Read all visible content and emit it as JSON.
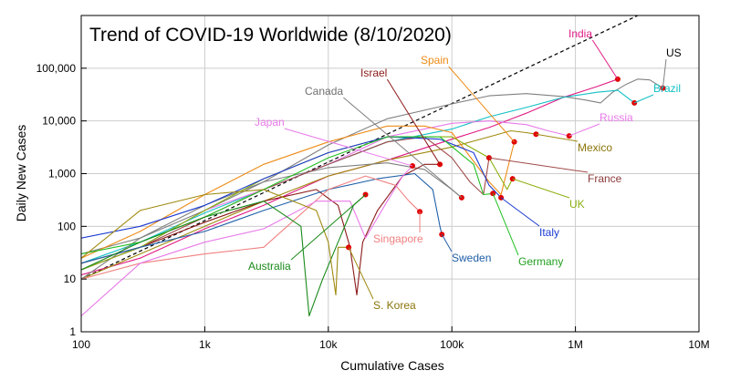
{
  "chart_data": {
    "type": "line",
    "title": "Trend of COVID-19 Worldwide (8/10/2020)",
    "xlabel": "Cumulative Cases",
    "ylabel": "Daily New Cases",
    "xscale": "log",
    "yscale": "log",
    "xlim": [
      100,
      10000000
    ],
    "ylim": [
      1,
      1000000
    ],
    "x_ticks": [
      {
        "value": 100,
        "label": "100"
      },
      {
        "value": 1000,
        "label": "1k"
      },
      {
        "value": 10000,
        "label": "10k"
      },
      {
        "value": 100000,
        "label": "100k"
      },
      {
        "value": 1000000,
        "label": "1M"
      },
      {
        "value": 10000000,
        "label": "10M"
      }
    ],
    "y_ticks": [
      {
        "value": 1,
        "label": "1"
      },
      {
        "value": 10,
        "label": "10"
      },
      {
        "value": 100,
        "label": "100"
      },
      {
        "value": 1000,
        "label": "1,000"
      },
      {
        "value": 10000,
        "label": "10,000"
      },
      {
        "value": 100000,
        "label": "100,000"
      }
    ],
    "grid": true,
    "reference_line": {
      "style": "dashed",
      "color": "#000000",
      "points": [
        [
          100,
          10
        ],
        [
          3200000,
          1000000
        ]
      ]
    },
    "series": [
      {
        "name": "US",
        "color": "#808080",
        "endpoint": [
          5100000,
          42000
        ],
        "points": [
          [
            100,
            30
          ],
          [
            300,
            60
          ],
          [
            1000,
            200
          ],
          [
            3000,
            700
          ],
          [
            10000,
            3500
          ],
          [
            30000,
            11000
          ],
          [
            100000,
            21000
          ],
          [
            200000,
            30000
          ],
          [
            400000,
            33000
          ],
          [
            800000,
            29000
          ],
          [
            1200000,
            25000
          ],
          [
            1600000,
            22000
          ],
          [
            2000000,
            35000
          ],
          [
            2600000,
            50000
          ],
          [
            3200000,
            62000
          ],
          [
            4000000,
            60000
          ],
          [
            5100000,
            42000
          ]
        ]
      },
      {
        "name": "India",
        "color": "#e01b84",
        "endpoint": [
          2200000,
          62000
        ],
        "points": [
          [
            100,
            12
          ],
          [
            300,
            25
          ],
          [
            1000,
            90
          ],
          [
            3000,
            250
          ],
          [
            10000,
            900
          ],
          [
            30000,
            1800
          ],
          [
            100000,
            4500
          ],
          [
            200000,
            7500
          ],
          [
            400000,
            14000
          ],
          [
            800000,
            28000
          ],
          [
            1500000,
            45000
          ],
          [
            2200000,
            62000
          ]
        ]
      },
      {
        "name": "Brazil",
        "color": "#12c0c6",
        "endpoint": [
          3000000,
          22000
        ],
        "points": [
          [
            100,
            20
          ],
          [
            300,
            50
          ],
          [
            1000,
            180
          ],
          [
            3000,
            500
          ],
          [
            10000,
            1500
          ],
          [
            30000,
            4000
          ],
          [
            100000,
            7000
          ],
          [
            200000,
            12000
          ],
          [
            400000,
            18000
          ],
          [
            800000,
            28000
          ],
          [
            1500000,
            35000
          ],
          [
            2200000,
            38000
          ],
          [
            3000000,
            22000
          ]
        ]
      },
      {
        "name": "Russia",
        "color": "#e87ae8",
        "endpoint": [
          890000,
          5200
        ],
        "points": [
          [
            100,
            15
          ],
          [
            300,
            40
          ],
          [
            1000,
            200
          ],
          [
            3000,
            500
          ],
          [
            10000,
            1500
          ],
          [
            30000,
            5000
          ],
          [
            100000,
            9000
          ],
          [
            200000,
            10000
          ],
          [
            400000,
            8500
          ],
          [
            600000,
            6500
          ],
          [
            890000,
            5200
          ]
        ]
      },
      {
        "name": "Mexico",
        "color": "#a08a10",
        "endpoint": [
          480000,
          5600
        ],
        "points": [
          [
            100,
            10
          ],
          [
            300,
            30
          ],
          [
            1000,
            100
          ],
          [
            3000,
            300
          ],
          [
            10000,
            900
          ],
          [
            30000,
            1800
          ],
          [
            100000,
            3200
          ],
          [
            200000,
            5000
          ],
          [
            300000,
            6500
          ],
          [
            400000,
            6000
          ],
          [
            480000,
            5600
          ]
        ]
      },
      {
        "name": "Canada",
        "color": "#808080",
        "endpoint": [
          120000,
          350
        ],
        "points": [
          [
            100,
            10
          ],
          [
            300,
            60
          ],
          [
            1000,
            250
          ],
          [
            3000,
            700
          ],
          [
            10000,
            1300
          ],
          [
            30000,
            1600
          ],
          [
            60000,
            1200
          ],
          [
            100000,
            500
          ],
          [
            120000,
            350
          ]
        ]
      },
      {
        "name": "Spain",
        "color": "#ee8c18",
        "endpoint": [
          320000,
          4000
        ],
        "points": [
          [
            100,
            25
          ],
          [
            300,
            80
          ],
          [
            1000,
            400
          ],
          [
            3000,
            1500
          ],
          [
            10000,
            4000
          ],
          [
            30000,
            8000
          ],
          [
            60000,
            8000
          ],
          [
            100000,
            6000
          ],
          [
            200000,
            700
          ],
          [
            250000,
            400
          ],
          [
            320000,
            4000
          ]
        ]
      },
      {
        "name": "Israel",
        "color": "#8b1a1a",
        "endpoint": [
          80000,
          1500
        ],
        "points": [
          [
            100,
            20
          ],
          [
            300,
            40
          ],
          [
            1000,
            120
          ],
          [
            3000,
            300
          ],
          [
            8000,
            500
          ],
          [
            12000,
            250
          ],
          [
            15000,
            40
          ],
          [
            17000,
            5
          ],
          [
            19000,
            50
          ],
          [
            25000,
            200
          ],
          [
            40000,
            900
          ],
          [
            60000,
            1500
          ],
          [
            80000,
            1500
          ]
        ]
      },
      {
        "name": "France",
        "color": "#a04a4a",
        "endpoint": [
          200000,
          2000
        ],
        "points": [
          [
            100,
            15
          ],
          [
            300,
            40
          ],
          [
            1000,
            150
          ],
          [
            3000,
            500
          ],
          [
            10000,
            1500
          ],
          [
            30000,
            4000
          ],
          [
            60000,
            5000
          ],
          [
            100000,
            2000
          ],
          [
            140000,
            700
          ],
          [
            180000,
            400
          ],
          [
            200000,
            2000
          ]
        ]
      },
      {
        "name": "UK",
        "color": "#8cb010",
        "endpoint": [
          310000,
          800
        ],
        "points": [
          [
            100,
            15
          ],
          [
            300,
            40
          ],
          [
            1000,
            200
          ],
          [
            3000,
            800
          ],
          [
            10000,
            2500
          ],
          [
            30000,
            5000
          ],
          [
            100000,
            5000
          ],
          [
            200000,
            2000
          ],
          [
            280000,
            500
          ],
          [
            310000,
            800
          ]
        ]
      },
      {
        "name": "Italy",
        "color": "#1a3ad0",
        "endpoint": [
          250000,
          350
        ],
        "points": [
          [
            100,
            60
          ],
          [
            300,
            100
          ],
          [
            1000,
            250
          ],
          [
            3000,
            800
          ],
          [
            10000,
            2500
          ],
          [
            30000,
            5000
          ],
          [
            80000,
            4500
          ],
          [
            150000,
            2500
          ],
          [
            200000,
            600
          ],
          [
            250000,
            350
          ]
        ]
      },
      {
        "name": "Germany",
        "color": "#22c022",
        "endpoint": [
          215000,
          420
        ],
        "points": [
          [
            100,
            30
          ],
          [
            300,
            50
          ],
          [
            1000,
            150
          ],
          [
            3000,
            500
          ],
          [
            10000,
            2000
          ],
          [
            30000,
            5000
          ],
          [
            80000,
            5000
          ],
          [
            150000,
            1500
          ],
          [
            180000,
            400
          ],
          [
            215000,
            420
          ]
        ]
      },
      {
        "name": "Sweden",
        "color": "#2060a8",
        "endpoint": [
          83000,
          70
        ],
        "points": [
          [
            100,
            20
          ],
          [
            300,
            40
          ],
          [
            1000,
            80
          ],
          [
            3000,
            200
          ],
          [
            10000,
            500
          ],
          [
            25000,
            800
          ],
          [
            50000,
            1000
          ],
          [
            70000,
            500
          ],
          [
            80000,
            100
          ],
          [
            83000,
            70
          ]
        ]
      },
      {
        "name": "Singapore",
        "color": "#f08080",
        "endpoint": [
          55000,
          190
        ],
        "points": [
          [
            100,
            10
          ],
          [
            300,
            20
          ],
          [
            1000,
            30
          ],
          [
            3000,
            40
          ],
          [
            10000,
            500
          ],
          [
            20000,
            900
          ],
          [
            35000,
            600
          ],
          [
            45000,
            300
          ],
          [
            55000,
            190
          ]
        ]
      },
      {
        "name": "Japan",
        "color": "#e87ae8",
        "endpoint": [
          48000,
          1400
        ],
        "points": [
          [
            100,
            2
          ],
          [
            300,
            20
          ],
          [
            1000,
            50
          ],
          [
            3000,
            90
          ],
          [
            8000,
            300
          ],
          [
            15000,
            300
          ],
          [
            20000,
            60
          ],
          [
            30000,
            300
          ],
          [
            40000,
            900
          ],
          [
            48000,
            1400
          ]
        ]
      },
      {
        "name": "Australia",
        "color": "#1a8a1a",
        "endpoint": [
          20000,
          400
        ],
        "points": [
          [
            100,
            15
          ],
          [
            300,
            50
          ],
          [
            1000,
            150
          ],
          [
            3000,
            300
          ],
          [
            6000,
            100
          ],
          [
            7000,
            2
          ],
          [
            9000,
            10
          ],
          [
            12000,
            50
          ],
          [
            16000,
            250
          ],
          [
            20000,
            400
          ]
        ]
      },
      {
        "name": "S. Korea",
        "color": "#a08a10",
        "endpoint": [
          14600,
          40
        ],
        "points": [
          [
            100,
            25
          ],
          [
            300,
            200
          ],
          [
            1000,
            400
          ],
          [
            3000,
            500
          ],
          [
            8000,
            200
          ],
          [
            10000,
            50
          ],
          [
            11500,
            5
          ],
          [
            12000,
            40
          ],
          [
            14600,
            40
          ]
        ]
      }
    ]
  },
  "series_labels": [
    {
      "name": "US",
      "color": "#000000"
    },
    {
      "name": "India",
      "color": "#e01b84"
    },
    {
      "name": "Brazil",
      "color": "#12c0c6"
    },
    {
      "name": "Russia",
      "color": "#e87ae8"
    },
    {
      "name": "Mexico",
      "color": "#8a7408"
    },
    {
      "name": "Canada",
      "color": "#707070"
    },
    {
      "name": "Spain",
      "color": "#ee8c18"
    },
    {
      "name": "Israel",
      "color": "#8b1a1a"
    },
    {
      "name": "France",
      "color": "#8b3a3a"
    },
    {
      "name": "UK",
      "color": "#8cb010"
    },
    {
      "name": "Italy",
      "color": "#1a3ad0"
    },
    {
      "name": "Germany",
      "color": "#22a022"
    },
    {
      "name": "Sweden",
      "color": "#2060a8"
    },
    {
      "name": "Singapore",
      "color": "#f08080"
    },
    {
      "name": "Japan",
      "color": "#e87ae8"
    },
    {
      "name": "Australia",
      "color": "#1a8a1a"
    },
    {
      "name": "S. Korea",
      "color": "#8a7408"
    }
  ],
  "colors": {
    "background": "#ffffff",
    "plot_border": "#000000",
    "grid": "#cccccc",
    "endpoint_marker": "#e00000"
  }
}
